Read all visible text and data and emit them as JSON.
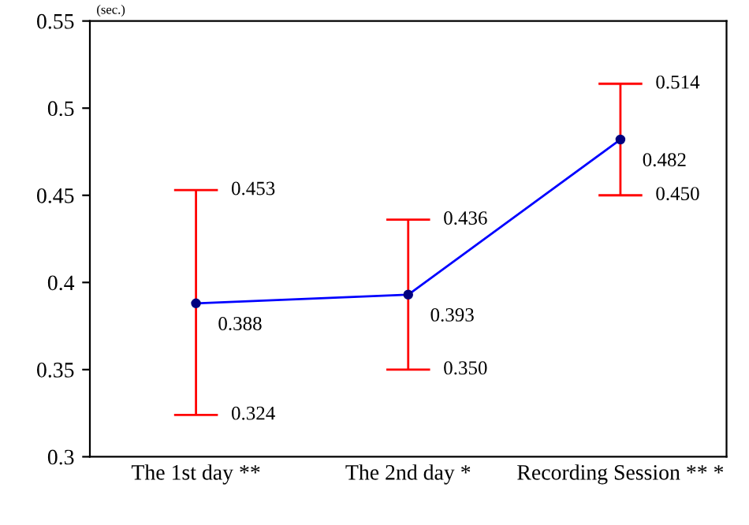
{
  "chart_data": {
    "type": "line",
    "ylabel": "(sec.)",
    "categories": [
      "The 1st day **",
      "The 2nd day *",
      "Recording Session ** *"
    ],
    "series": [
      {
        "color": "#0000ff",
        "values": [
          0.388,
          0.393,
          0.482
        ],
        "errors": [
          [
            0.324,
            0.453
          ],
          [
            0.35,
            0.436
          ],
          [
            0.45,
            0.514
          ]
        ],
        "value_labels": [
          "0.388",
          "0.393",
          "0.482"
        ]
      }
    ],
    "ylim": [
      0.3,
      0.55
    ],
    "yticks": [
      0.3,
      0.35,
      0.4,
      0.45,
      0.5,
      0.55
    ],
    "marker": "circle",
    "line_style": "solid",
    "grid": false,
    "legend": false,
    "annotations": [
      {
        "text": "0.453",
        "x": "The 1st day **",
        "y": 0.453
      },
      {
        "text": "0.324",
        "x": "The 1st day **",
        "y": 0.324
      },
      {
        "text": "0.436",
        "x": "The 2nd day *",
        "y": 0.436
      },
      {
        "text": "0.350",
        "x": "The 2nd day *",
        "y": 0.35
      },
      {
        "text": "0.514",
        "x": "Recording Session ** *",
        "y": 0.514
      },
      {
        "text": "0.450",
        "x": "Recording Session ** *",
        "y": 0.45
      }
    ]
  }
}
